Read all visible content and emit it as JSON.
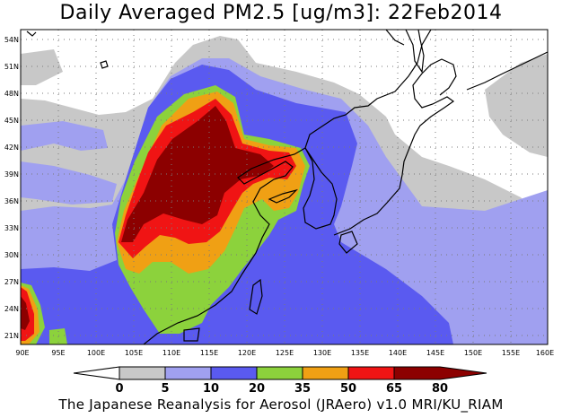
{
  "title": "Daily Averaged PM2.5 [ug/m3]: 22Feb2014",
  "credit": "The Japanese Reanalysis for Aerosol (JRAero) v1.0 MRI/KU_RIAM",
  "map": {
    "lon_range": [
      90,
      160
    ],
    "lat_range": [
      19.5,
      55
    ],
    "lon_ticks": [
      "90E",
      "95E",
      "100E",
      "105E",
      "110E",
      "115E",
      "120E",
      "125E",
      "130E",
      "135E",
      "140E",
      "145E",
      "150E",
      "155E",
      "160E"
    ],
    "lat_ticks": [
      "21N",
      "24N",
      "27N",
      "30N",
      "33N",
      "36N",
      "39N",
      "42N",
      "45N",
      "48N",
      "51N",
      "54N"
    ]
  },
  "legend": {
    "labels": [
      "0",
      "5",
      "10",
      "20",
      "35",
      "50",
      "65",
      "80"
    ],
    "colors": [
      "#ffffff",
      "#c8c8c8",
      "#a0a0f0",
      "#5a5af0",
      "#8cd23c",
      "#f0a014",
      "#f01414",
      "#8c0000"
    ]
  }
}
